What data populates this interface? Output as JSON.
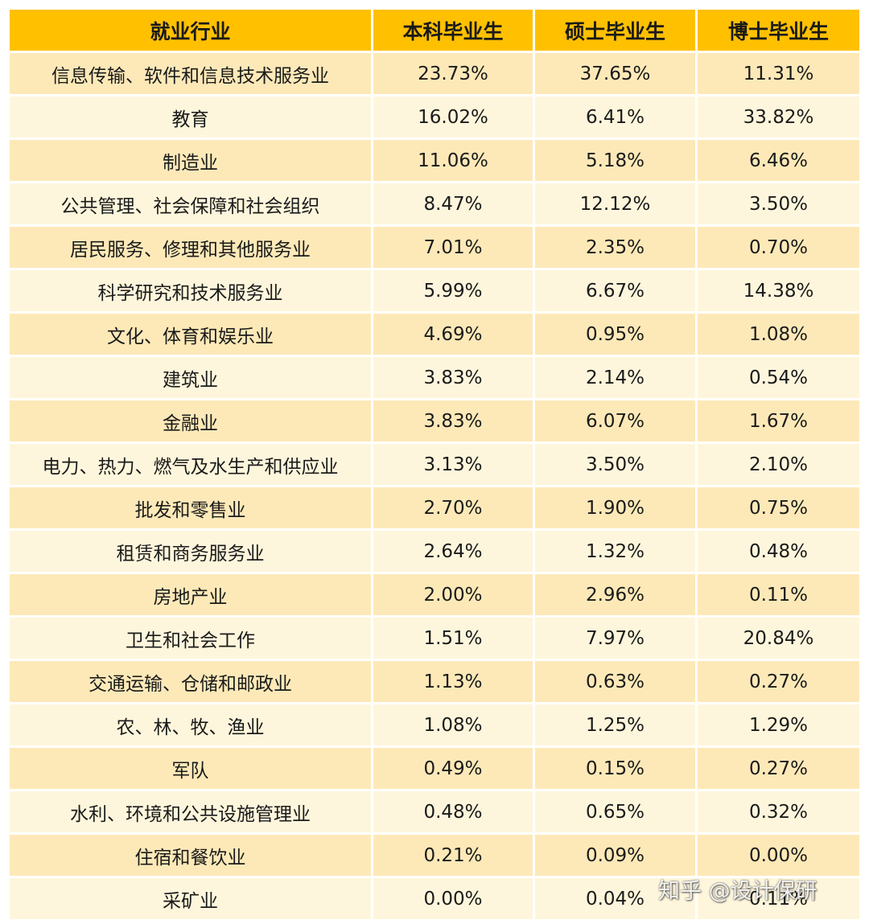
{
  "chart_data": {
    "type": "table",
    "columns": [
      "就业行业",
      "本科毕业生",
      "硕士毕业生",
      "博士毕业生"
    ],
    "rows": [
      {
        "industry": "信息传输、软件和信息技术服务业",
        "bachelor": "23.73%",
        "master": "37.65%",
        "doctor": "11.31%"
      },
      {
        "industry": "教育",
        "bachelor": "16.02%",
        "master": "6.41%",
        "doctor": "33.82%"
      },
      {
        "industry": "制造业",
        "bachelor": "11.06%",
        "master": "5.18%",
        "doctor": "6.46%"
      },
      {
        "industry": "公共管理、社会保障和社会组织",
        "bachelor": "8.47%",
        "master": "12.12%",
        "doctor": "3.50%"
      },
      {
        "industry": "居民服务、修理和其他服务业",
        "bachelor": "7.01%",
        "master": "2.35%",
        "doctor": "0.70%"
      },
      {
        "industry": "科学研究和技术服务业",
        "bachelor": "5.99%",
        "master": "6.67%",
        "doctor": "14.38%"
      },
      {
        "industry": "文化、体育和娱乐业",
        "bachelor": "4.69%",
        "master": "0.95%",
        "doctor": "1.08%"
      },
      {
        "industry": "建筑业",
        "bachelor": "3.83%",
        "master": "2.14%",
        "doctor": "0.54%"
      },
      {
        "industry": "金融业",
        "bachelor": "3.83%",
        "master": "6.07%",
        "doctor": "1.67%"
      },
      {
        "industry": "电力、热力、燃气及水生产和供应业",
        "bachelor": "3.13%",
        "master": "3.50%",
        "doctor": "2.10%"
      },
      {
        "industry": "批发和零售业",
        "bachelor": "2.70%",
        "master": "1.90%",
        "doctor": "0.75%"
      },
      {
        "industry": "租赁和商务服务业",
        "bachelor": "2.64%",
        "master": "1.32%",
        "doctor": "0.48%"
      },
      {
        "industry": "房地产业",
        "bachelor": "2.00%",
        "master": "2.96%",
        "doctor": "0.11%"
      },
      {
        "industry": "卫生和社会工作",
        "bachelor": "1.51%",
        "master": "7.97%",
        "doctor": "20.84%"
      },
      {
        "industry": "交通运输、仓储和邮政业",
        "bachelor": "1.13%",
        "master": "0.63%",
        "doctor": "0.27%"
      },
      {
        "industry": "农、林、牧、渔业",
        "bachelor": "1.08%",
        "master": "1.25%",
        "doctor": "1.29%"
      },
      {
        "industry": "军队",
        "bachelor": "0.49%",
        "master": "0.15%",
        "doctor": "0.27%"
      },
      {
        "industry": "水利、环境和公共设施管理业",
        "bachelor": "0.48%",
        "master": "0.65%",
        "doctor": "0.32%"
      },
      {
        "industry": "住宿和餐饮业",
        "bachelor": "0.21%",
        "master": "0.09%",
        "doctor": "0.00%"
      },
      {
        "industry": "采矿业",
        "bachelor": "0.00%",
        "master": "0.04%",
        "doctor": "0.11%"
      }
    ],
    "colors": {
      "header_bg": "#ffc000",
      "row_odd_bg": "#fde9b8",
      "row_even_bg": "#fef6dc"
    }
  },
  "watermark": "知乎 @设计保研"
}
